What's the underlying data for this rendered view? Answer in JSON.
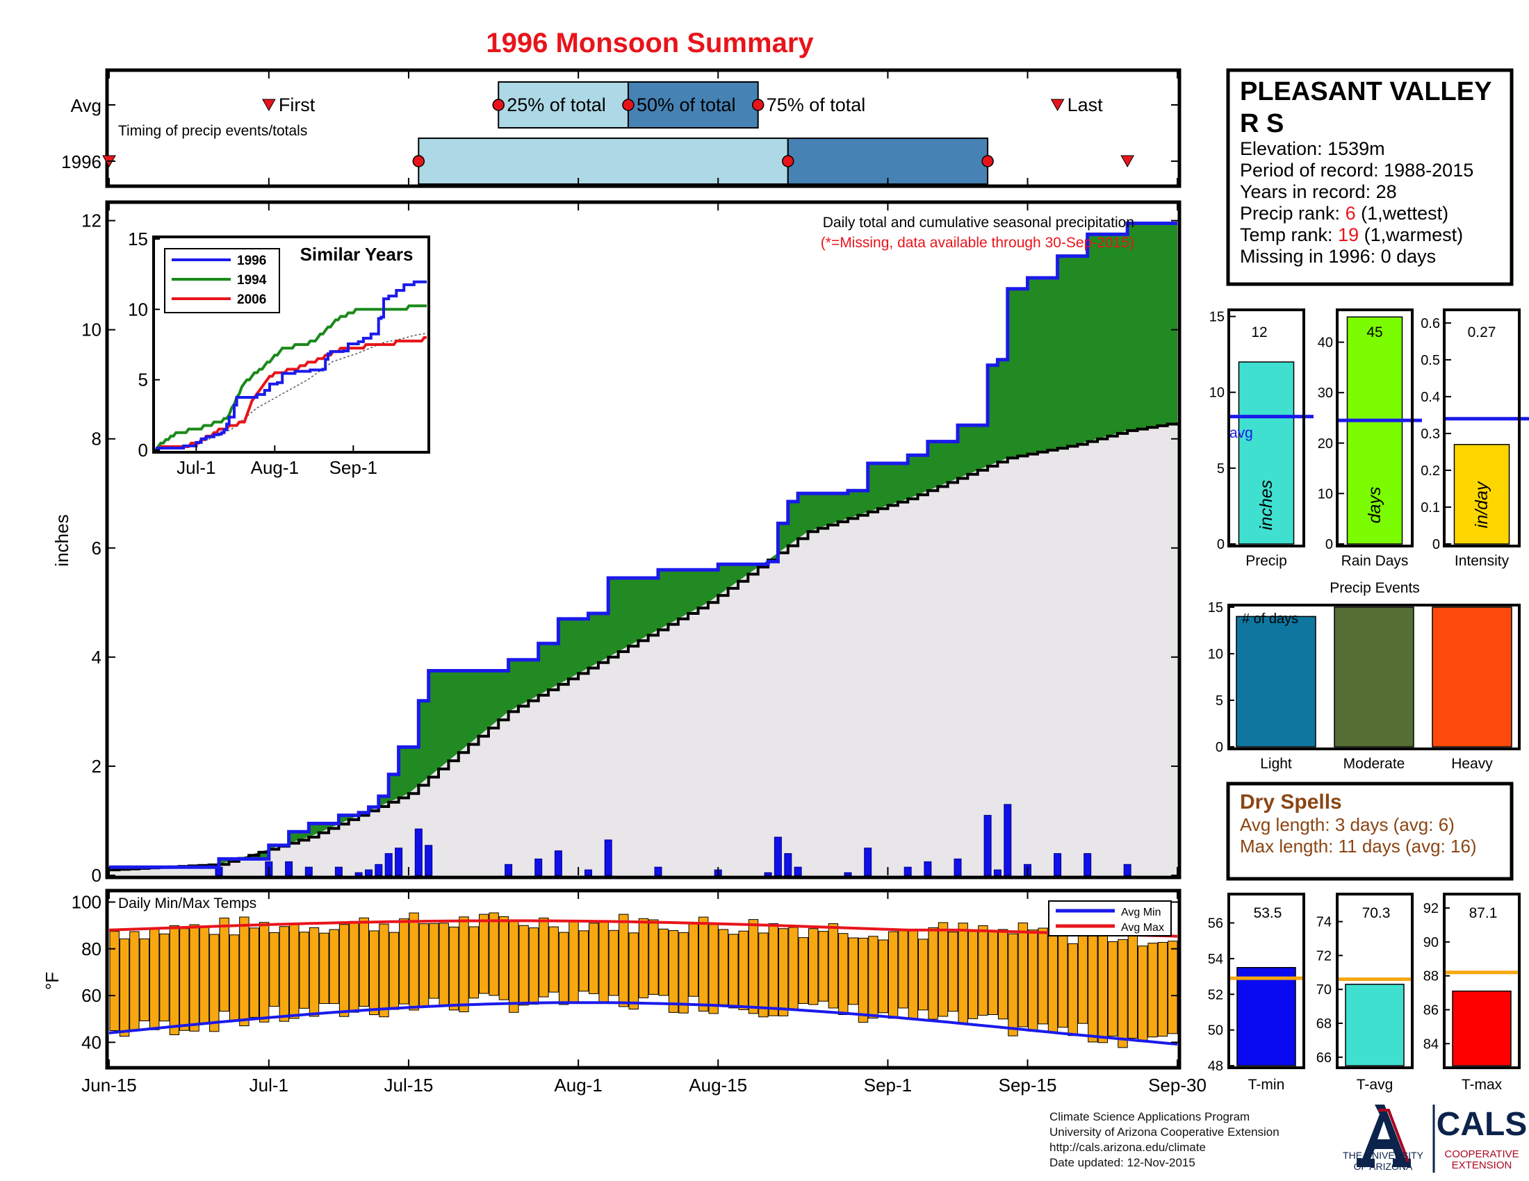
{
  "title": "1996 Monsoon Summary",
  "timing": {
    "avg_label": "Avg",
    "year_label": "1996",
    "caption": "Timing of precip events/totals",
    "first_label": "First",
    "last_label": "Last",
    "pct25_label": "25% of total",
    "pct50_label": "50% of total",
    "pct75_label": "75% of total",
    "avg_dates": {
      "first": "2015-07-01",
      "p25": "2015-07-24",
      "p50": "2015-08-06",
      "p75": "2015-08-19",
      "last": "2015-09-18"
    },
    "year_dates": {
      "first": "2015-06-15",
      "p25": "2015-07-16",
      "p50": "2015-08-22",
      "p75": "2015-09-11",
      "last": "2015-09-25"
    }
  },
  "station": {
    "name": "PLEASANT VALLEY R S",
    "name_line1": "PLEASANT VALLEY",
    "name_line2": "R S",
    "elevation": "Elevation: 1539m",
    "period": "Period of record: 1988-2015",
    "years": "Years in record: 28",
    "precip_rank_label": "Precip rank: ",
    "precip_rank_value": "6",
    "precip_rank_note": " (1,wettest)",
    "temp_rank_label": "Temp rank: ",
    "temp_rank_value": "19",
    "temp_rank_note": " (1,warmest)",
    "missing": "Missing in 1996: 0 days"
  },
  "main_chart": {
    "annotation": "Daily total and cumulative seasonal precipitation",
    "missing_note": "(*=Missing, data available through 30-Sep-2015)",
    "ylabel": "inches",
    "ylim": [
      0,
      12.3
    ],
    "yticks": [
      "0",
      "2",
      "4",
      "6",
      "8",
      "10",
      "12"
    ],
    "xticks": [
      "Jun-15",
      "Jul-1",
      "Jul-15",
      "Aug-1",
      "Aug-15",
      "Sep-1",
      "Sep-15",
      "Sep-30"
    ]
  },
  "inset": {
    "title": "Similar Years",
    "yticks": [
      "0",
      "5",
      "10",
      "15"
    ],
    "xticks": [
      "Jul-1",
      "Aug-1",
      "Sep-1"
    ],
    "legend": [
      "1996",
      "1994",
      "2006"
    ]
  },
  "temps": {
    "label": "Daily Min/Max Temps",
    "ylabel": "°F",
    "yticks": [
      "40",
      "60",
      "80",
      "100"
    ],
    "legend_min": "Avg Min",
    "legend_max": "Avg Max"
  },
  "mini_bars": {
    "precip": {
      "value_label": "12",
      "unit": "inches",
      "avg_label": "avg",
      "label": "Precip",
      "yticks": [
        "0",
        "5",
        "10",
        "15"
      ]
    },
    "rain_days": {
      "value_label": "45",
      "unit": "days",
      "label": "Rain Days",
      "yticks": [
        "0",
        "10",
        "20",
        "30",
        "40"
      ]
    },
    "intensity": {
      "value_label": "0.27",
      "unit": "in/day",
      "label": "Intensity",
      "yticks": [
        "0",
        "0.1",
        "0.2",
        "0.3",
        "0.4",
        "0.5",
        "0.6"
      ]
    }
  },
  "events": {
    "title": "Precip Events",
    "inner_label": "# of days",
    "yticks": [
      "0",
      "5",
      "10",
      "15"
    ],
    "labels": [
      "Light",
      "Moderate",
      "Heavy"
    ]
  },
  "dry_spells": {
    "title": "Dry Spells",
    "avg_line": "Avg length: 3 days (avg: 6)",
    "max_line": "Max length: 11 days (avg: 16)"
  },
  "temp_bars": {
    "tmin": {
      "value_label": "53.5",
      "label": "T-min",
      "yticks": [
        "48",
        "50",
        "52",
        "54",
        "56"
      ]
    },
    "tavg": {
      "value_label": "70.3",
      "label": "T-avg",
      "yticks": [
        "66",
        "68",
        "70",
        "72",
        "74"
      ]
    },
    "tmax": {
      "value_label": "87.1",
      "label": "T-max",
      "yticks": [
        "84",
        "86",
        "88",
        "90",
        "92"
      ]
    }
  },
  "footer": {
    "line1": "Climate Science Applications Program",
    "line2": "University of Arizona Cooperative Extension",
    "line3": "http://cals.arizona.edu/climate",
    "line4": "Date updated: 12-Nov-2015"
  },
  "logos": {
    "ua_lines": [
      "THE UNIVERSITY",
      "OF ARIZONA"
    ],
    "cals": "CALS",
    "cals_lines": [
      "COOPERATIVE",
      "EXTENSION"
    ]
  },
  "colors": {
    "title": "#e8141b",
    "cum_line": "#1a1aeb",
    "surplus": "#228a22",
    "avg_area": "#e8e6e8",
    "bars": "#1010e8",
    "temp_bar": "#f7a70f",
    "avg_max": "#e8141b",
    "avg_min": "#1a1aeb",
    "light": "#0f76a0",
    "moderate": "#566d34",
    "heavy": "#fe4a0a",
    "dry": "#8b4513"
  },
  "chart_data": [
    {
      "type": "area",
      "title": "1996 Monsoon Summary",
      "ylabel": "inches",
      "ylim": [
        0,
        12.3
      ],
      "x_range": [
        "2015-06-15",
        "2015-09-30"
      ],
      "series": [
        {
          "name": "1996",
          "x": [
            "2015-06-15",
            "2015-06-26",
            "2015-07-01",
            "2015-07-03",
            "2015-07-05",
            "2015-07-08",
            "2015-07-10",
            "2015-07-11",
            "2015-07-12",
            "2015-07-13",
            "2015-07-14",
            "2015-07-16",
            "2015-07-17",
            "2015-07-22",
            "2015-07-25",
            "2015-07-28",
            "2015-07-30",
            "2015-08-02",
            "2015-08-04",
            "2015-08-09",
            "2015-08-15",
            "2015-08-20",
            "2015-08-21",
            "2015-08-22",
            "2015-08-23",
            "2015-08-28",
            "2015-08-30",
            "2015-09-03",
            "2015-09-05",
            "2015-09-08",
            "2015-09-09",
            "2015-09-11",
            "2015-09-12",
            "2015-09-13",
            "2015-09-15",
            "2015-09-18",
            "2015-09-21",
            "2015-09-22",
            "2015-09-25",
            "2015-09-30"
          ],
          "values": [
            0.15,
            0.3,
            0.55,
            0.8,
            0.95,
            1.1,
            1.15,
            1.25,
            1.45,
            1.85,
            2.35,
            3.2,
            3.75,
            3.75,
            3.95,
            4.25,
            4.7,
            4.8,
            5.45,
            5.6,
            5.7,
            5.75,
            6.45,
            6.85,
            7.0,
            7.05,
            7.55,
            7.7,
            7.95,
            8.25,
            8.25,
            9.35,
            9.45,
            10.75,
            10.95,
            11.35,
            11.75,
            11.75,
            11.95,
            11.95
          ]
        },
        {
          "name": "average",
          "x": [
            "2015-06-15",
            "2015-06-26",
            "2015-07-05",
            "2015-07-15",
            "2015-07-25",
            "2015-08-04",
            "2015-08-14",
            "2015-08-24",
            "2015-09-03",
            "2015-09-13",
            "2015-09-20",
            "2015-09-25",
            "2015-09-30"
          ],
          "values": [
            0.1,
            0.2,
            0.7,
            1.5,
            3.0,
            4.0,
            5.0,
            6.3,
            6.9,
            7.65,
            7.9,
            8.15,
            8.3
          ]
        }
      ]
    },
    {
      "type": "bar",
      "title": "Precip Events",
      "categories": [
        "Light",
        "Moderate",
        "Heavy"
      ],
      "values": [
        14,
        15,
        15
      ],
      "ylim": [
        0,
        15
      ]
    },
    {
      "type": "bar",
      "categories": [
        "Precip",
        "Rain Days",
        "Intensity"
      ],
      "values": [
        12,
        45,
        0.27
      ],
      "averages": [
        8.4,
        24.5,
        0.34
      ]
    },
    {
      "type": "bar",
      "categories": [
        "T-min",
        "T-avg",
        "T-max"
      ],
      "values": [
        53.5,
        70.3,
        87.1
      ],
      "averages": [
        52.9,
        70.6,
        88.2
      ]
    }
  ]
}
